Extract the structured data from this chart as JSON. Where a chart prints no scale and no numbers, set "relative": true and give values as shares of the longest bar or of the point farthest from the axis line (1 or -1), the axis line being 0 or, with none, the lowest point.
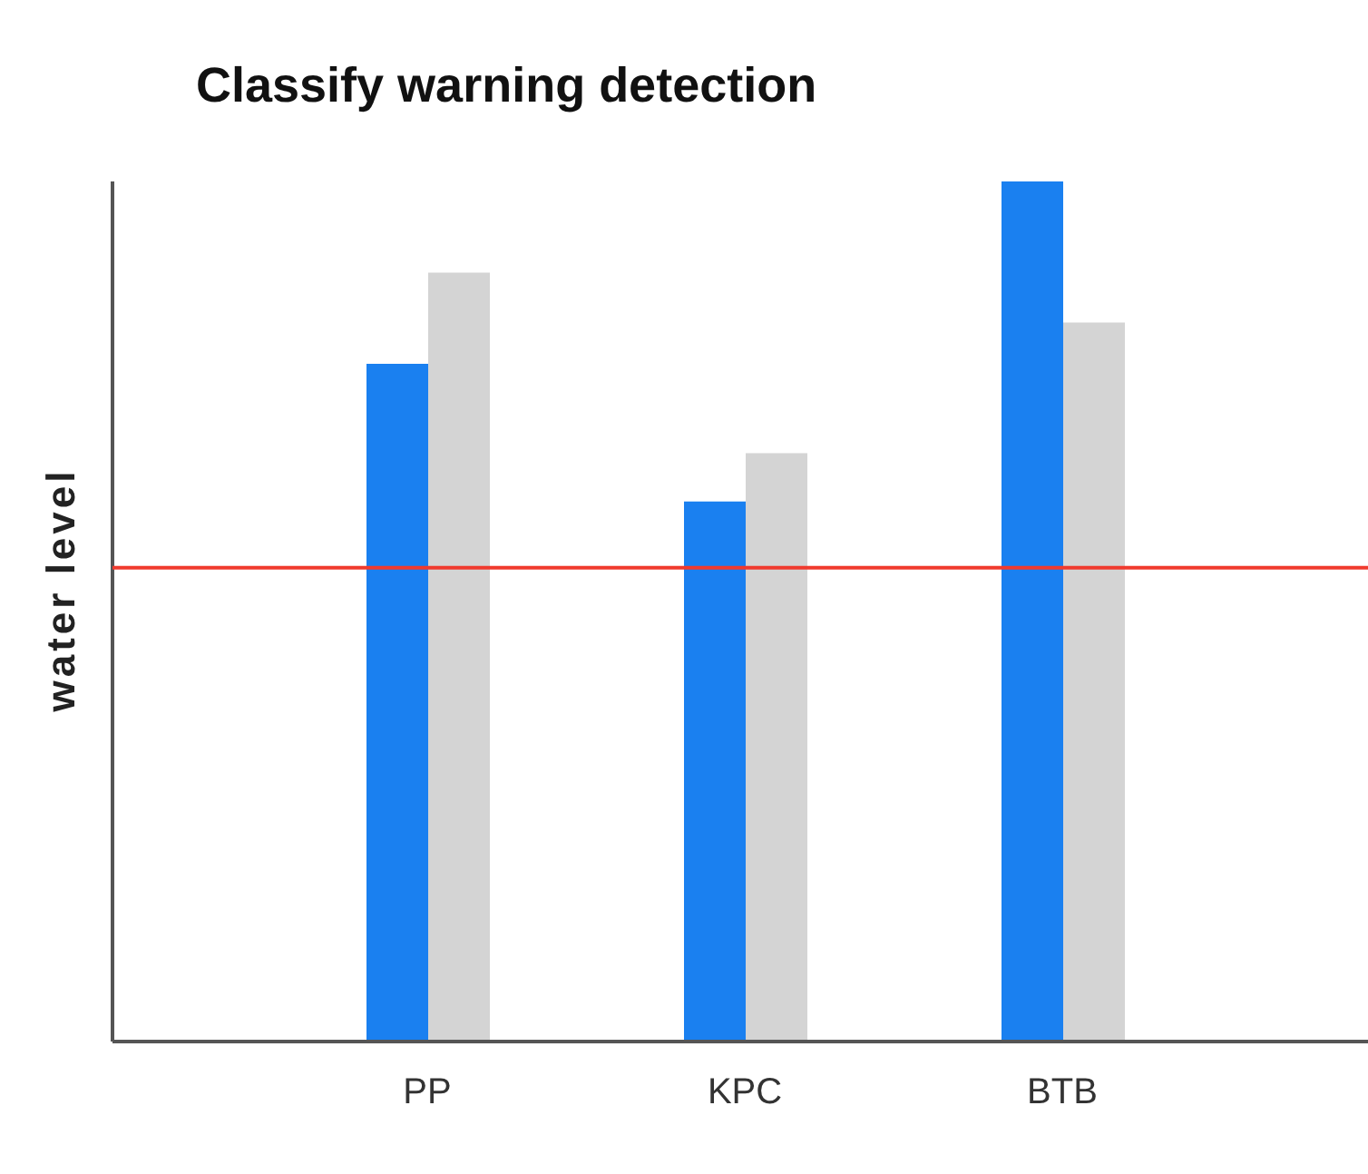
{
  "chart_data": {
    "type": "bar",
    "title": "Classify warning detection",
    "ylabel": "water level",
    "relative": true,
    "categories": [
      "PP",
      "KPC",
      "BTB"
    ],
    "series": [
      {
        "color": "#1a80f0",
        "values": [
          0.788,
          0.628,
          1
        ]
      },
      {
        "color": "#d4d4d4",
        "values": [
          0.894,
          0.684,
          0.836
        ]
      }
    ],
    "ref_lines": [
      {
        "axis": "y",
        "value": 0.551,
        "color": "#f03a2e"
      }
    ]
  }
}
